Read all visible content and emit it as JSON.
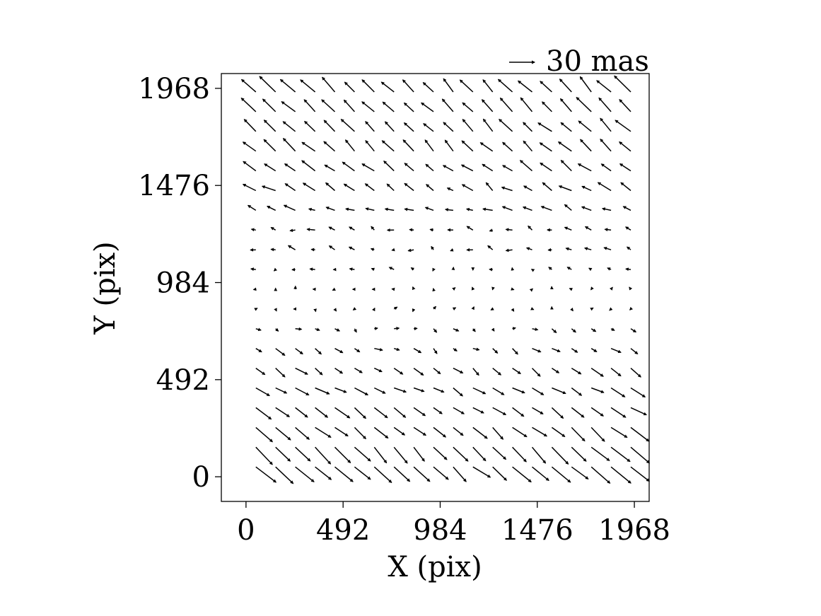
{
  "chart_data": {
    "type": "quiver",
    "title": "",
    "xlabel": "X (pix)",
    "ylabel": "Y (pix)",
    "xlim": [
      -125,
      2043
    ],
    "ylim": [
      -125,
      2043
    ],
    "xticks": [
      0,
      492,
      984,
      1476,
      1968
    ],
    "xtick_labels": [
      "0",
      "492",
      "984",
      "1476",
      "1968"
    ],
    "yticks": [
      0,
      492,
      984,
      1476,
      1968
    ],
    "ytick_labels": [
      "0",
      "492",
      "984",
      "1476",
      "1968"
    ],
    "grid": false,
    "key": {
      "label": "30 mas",
      "value": 30,
      "placement": "above top-right"
    },
    "vector_grid": {
      "columns": [
        50,
        150,
        250,
        350,
        450,
        550,
        650,
        750,
        850,
        950,
        1050,
        1150,
        1250,
        1350,
        1450,
        1550,
        1650,
        1750,
        1850,
        1950
      ],
      "rows": [
        50,
        150,
        250,
        350,
        450,
        550,
        650,
        750,
        850,
        950,
        1050,
        1150,
        1250,
        1350,
        1450,
        1550,
        1650,
        1750,
        1850,
        1950
      ],
      "units": "mas",
      "row_mean_vectors": [
        {
          "y": 50,
          "u": 21,
          "v": -17
        },
        {
          "y": 150,
          "u": 18,
          "v": -18
        },
        {
          "y": 250,
          "u": 17,
          "v": -13
        },
        {
          "y": 350,
          "u": 16,
          "v": -10
        },
        {
          "y": 450,
          "u": 14,
          "v": -8
        },
        {
          "y": 550,
          "u": 11,
          "v": -7
        },
        {
          "y": 650,
          "u": 8,
          "v": -5
        },
        {
          "y": 750,
          "u": 5,
          "v": -2
        },
        {
          "y": 850,
          "u": 1,
          "v": 0
        },
        {
          "y": 950,
          "u": 0,
          "v": 1
        },
        {
          "y": 1050,
          "u": -3,
          "v": 1
        },
        {
          "y": 1150,
          "u": -5,
          "v": 2
        },
        {
          "y": 1250,
          "u": -7,
          "v": 2
        },
        {
          "y": 1350,
          "u": -10,
          "v": 4
        },
        {
          "y": 1450,
          "u": -12,
          "v": 7
        },
        {
          "y": 1550,
          "u": -13,
          "v": 10
        },
        {
          "y": 1650,
          "u": -13,
          "v": 12
        },
        {
          "y": 1750,
          "u": -14,
          "v": 13
        },
        {
          "y": 1850,
          "u": -14,
          "v": 14
        },
        {
          "y": 1950,
          "u": -15,
          "v": 15
        }
      ]
    }
  }
}
